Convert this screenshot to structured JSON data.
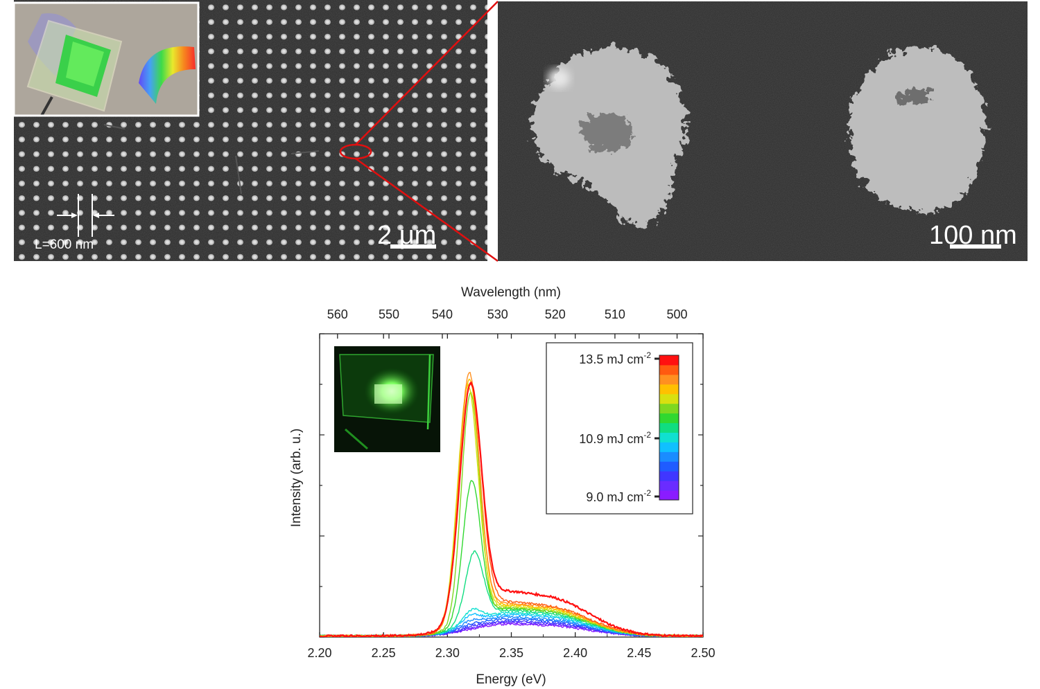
{
  "sem_left": {
    "scale_bar_label": "2 μm",
    "period_label": "L=600 nm",
    "inset": "photo of sample on holder showing diffraction rainbow"
  },
  "sem_right": {
    "scale_bar_label": "100 nm"
  },
  "spectrum": {
    "inset": "photo of sample emitting green light"
  },
  "colors": {
    "zoom_outline": "#e01010",
    "colormap": [
      "#8a1cff",
      "#6a2cff",
      "#4036ff",
      "#1f5cff",
      "#1a8cff",
      "#10c0ff",
      "#10e0d0",
      "#10dd80",
      "#30d830",
      "#7ed820",
      "#d8e010",
      "#ffc000",
      "#ff9020",
      "#ff5a10",
      "#ff1010"
    ]
  },
  "chart_data": {
    "type": "line",
    "xlabel": "Energy (eV)",
    "x2label": "Wavelength (nm)",
    "ylabel": "Intensity (arb. u.)",
    "xlim": [
      2.2,
      2.5
    ],
    "ylim": [
      0,
      1.2
    ],
    "xticks": [
      "2.20",
      "2.25",
      "2.30",
      "2.35",
      "2.40",
      "2.45",
      "2.50"
    ],
    "x2ticks": [
      "560",
      "550",
      "540",
      "530",
      "520",
      "510",
      "500"
    ],
    "x2tick_wavelengths_nm": [
      560,
      550,
      540,
      530,
      520,
      510,
      500
    ],
    "grid": false,
    "legend": {
      "type": "colorbar",
      "placement": "top-right",
      "labels": [
        {
          "value": 13.5,
          "text": "13.5 mJ cm",
          "sup": "-2"
        },
        {
          "value": 10.9,
          "text": "10.9 mJ cm",
          "sup": "-2"
        },
        {
          "value": 9.0,
          "text": "9.0 mJ cm",
          "sup": "-2"
        }
      ]
    },
    "series": [
      {
        "fluence": 9.0,
        "color": "#8a1cff",
        "peak_x": 2.318,
        "peak_height": 0.0,
        "peak_width": 0.007,
        "asym_height": 0.04,
        "baseline": 0.0
      },
      {
        "fluence": 9.3,
        "color": "#6a2cff",
        "peak_x": 2.318,
        "peak_height": 0.0,
        "peak_width": 0.007,
        "asym_height": 0.045,
        "baseline": 0.0
      },
      {
        "fluence": 9.6,
        "color": "#4036ff",
        "peak_x": 2.318,
        "peak_height": 0.005,
        "peak_width": 0.007,
        "asym_height": 0.05,
        "baseline": 0.0
      },
      {
        "fluence": 9.9,
        "color": "#1f5cff",
        "peak_x": 2.318,
        "peak_height": 0.01,
        "peak_width": 0.007,
        "asym_height": 0.057,
        "baseline": 0.0
      },
      {
        "fluence": 10.2,
        "color": "#1a8cff",
        "peak_x": 2.318,
        "peak_height": 0.02,
        "peak_width": 0.007,
        "asym_height": 0.064,
        "baseline": 0.0
      },
      {
        "fluence": 10.5,
        "color": "#10c0ff",
        "peak_x": 2.318,
        "peak_height": 0.035,
        "peak_width": 0.007,
        "asym_height": 0.072,
        "baseline": 0.0
      },
      {
        "fluence": 10.9,
        "color": "#10e0d0",
        "peak_x": 2.319,
        "peak_height": 0.05,
        "peak_width": 0.007,
        "asym_height": 0.078,
        "baseline": 0.0
      },
      {
        "fluence": 11.2,
        "color": "#10dd80",
        "peak_x": 2.321,
        "peak_height": 0.27,
        "peak_width": 0.007,
        "asym_height": 0.085,
        "baseline": 0.0
      },
      {
        "fluence": 11.6,
        "color": "#30d830",
        "peak_x": 2.319,
        "peak_height": 0.55,
        "peak_width": 0.007,
        "asym_height": 0.092,
        "baseline": 0.0
      },
      {
        "fluence": 12.0,
        "color": "#7ed820",
        "peak_x": 2.318,
        "peak_height": 0.9,
        "peak_width": 0.007,
        "asym_height": 0.095,
        "baseline": 0.0
      },
      {
        "fluence": 12.3,
        "color": "#d8e010",
        "peak_x": 2.316,
        "peak_height": 0.93,
        "peak_width": 0.008,
        "asym_height": 0.1,
        "baseline": 0.0
      },
      {
        "fluence": 12.6,
        "color": "#ffc000",
        "peak_x": 2.317,
        "peak_height": 0.95,
        "peak_width": 0.008,
        "asym_height": 0.105,
        "baseline": 0.0
      },
      {
        "fluence": 13.0,
        "color": "#ff9020",
        "peak_x": 2.317,
        "peak_height": 0.97,
        "peak_width": 0.008,
        "asym_height": 0.11,
        "baseline": 0.0
      },
      {
        "fluence": 13.2,
        "color": "#ff5a10",
        "peak_x": 2.318,
        "peak_height": 0.92,
        "peak_width": 0.0085,
        "asym_height": 0.115,
        "baseline": 0.0
      },
      {
        "fluence": 13.5,
        "color": "#ff1010",
        "peak_x": 2.318,
        "peak_height": 0.9,
        "peak_width": 0.0085,
        "asym_height": 0.15,
        "baseline": 0.0
      }
    ]
  }
}
